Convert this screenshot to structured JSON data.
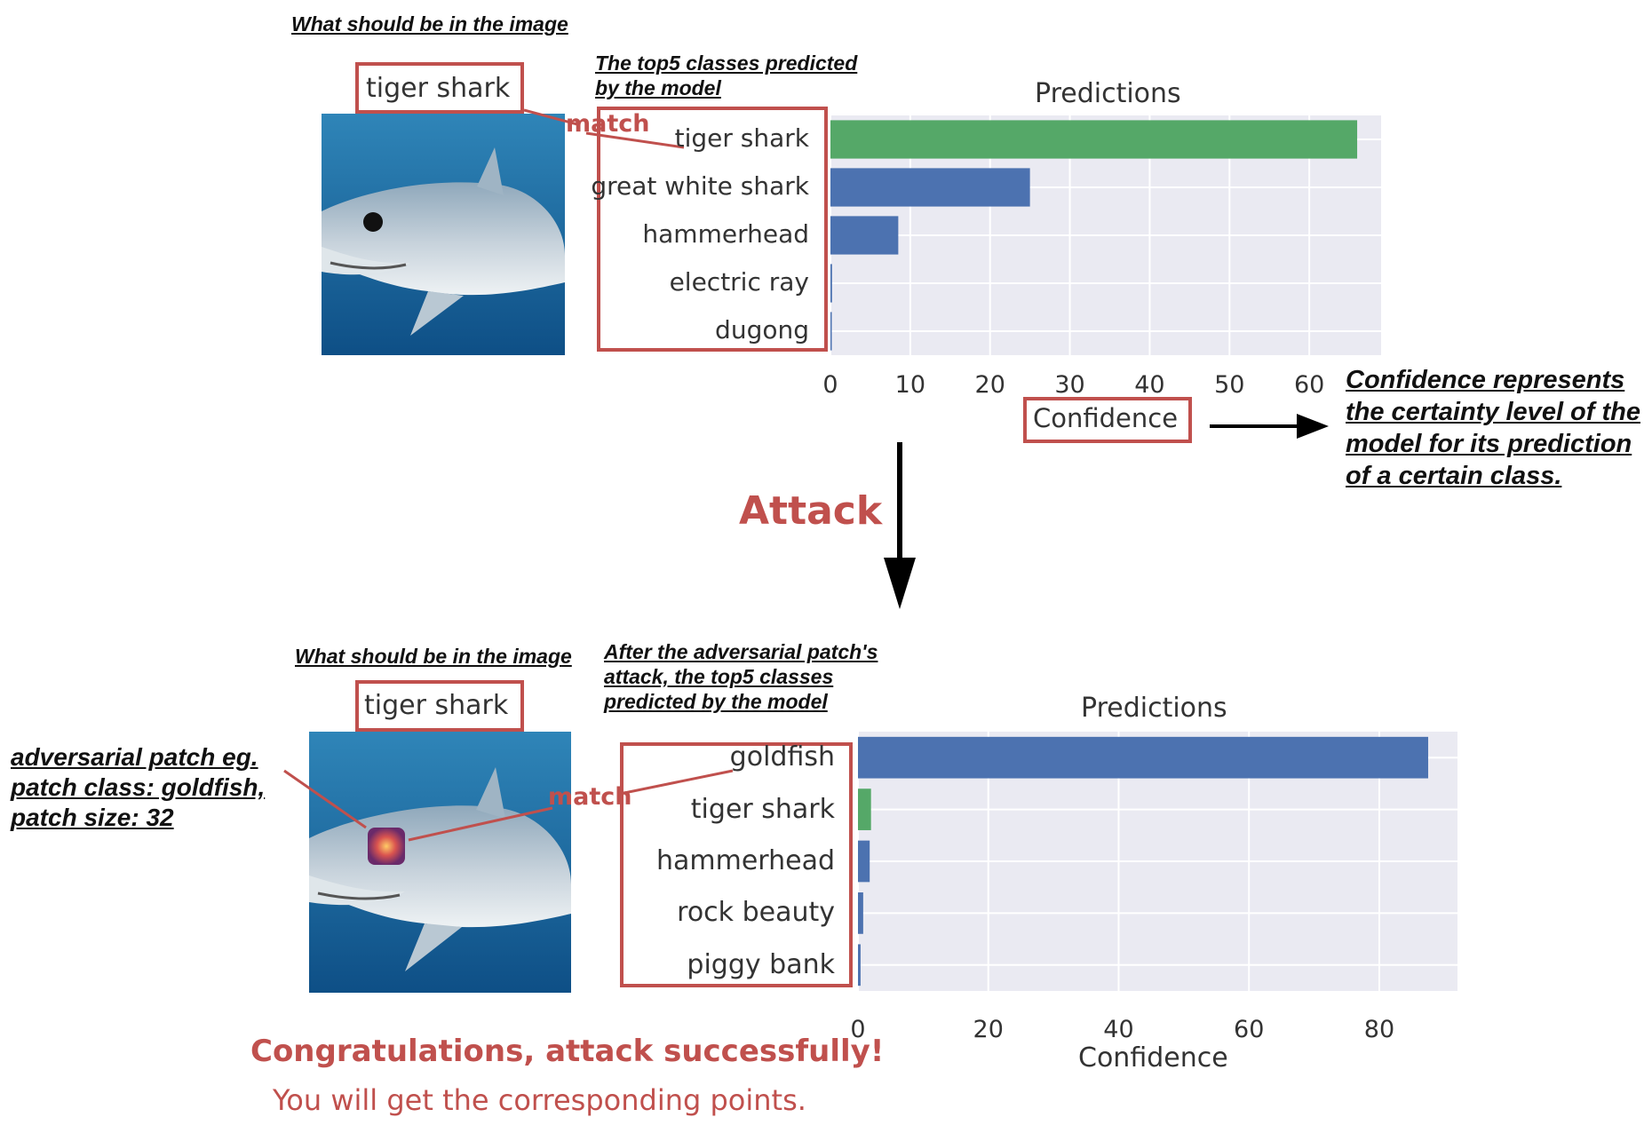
{
  "top": {
    "note_should_be": "What should be in the image",
    "true_label": "tiger shark",
    "match_label": "match",
    "note_top5": "The top5 classes predicted",
    "note_top5_line2": "by the model",
    "confidence_note_lines": [
      "Confidence represents",
      "the certainty level of the",
      "model for its prediction",
      "of a certain class."
    ]
  },
  "attack_label": "Attack",
  "bottom": {
    "note_should_be": "What should be in the image",
    "true_label": "tiger shark",
    "match_label": "match",
    "note_after_lines": [
      "After the adversarial patch's",
      "attack, the top5 classes",
      "predicted by the model"
    ],
    "patch_note_lines": [
      "adversarial patch eg.",
      "patch class: goldfish,",
      "patch size: 32"
    ],
    "congrats": "Congratulations, attack successfully!",
    "points": "You will get the corresponding points."
  },
  "colors": {
    "accent_red": "#c0504d",
    "bar_green": "#55a868",
    "bar_blue": "#4c72b0",
    "plot_bg": "#eaeaf2"
  },
  "chart_data": [
    {
      "type": "bar",
      "orientation": "horizontal",
      "title": "Predictions",
      "xlabel": "Confidence",
      "categories": [
        "tiger shark",
        "great white shark",
        "hammerhead",
        "electric ray",
        "dugong"
      ],
      "values": [
        66,
        25,
        8.5,
        0.2,
        0.1
      ],
      "bar_colors": [
        "green",
        "blue",
        "blue",
        "blue",
        "blue"
      ],
      "xticks": [
        0,
        10,
        20,
        30,
        40,
        50,
        60
      ],
      "xlim": [
        0,
        69
      ],
      "grid": true
    },
    {
      "type": "bar",
      "orientation": "horizontal",
      "title": "Predictions",
      "xlabel": "Confidence",
      "categories": [
        "goldfish",
        "tiger shark",
        "hammerhead",
        "rock beauty",
        "piggy bank"
      ],
      "values": [
        87.5,
        2,
        1.8,
        0.8,
        0.4
      ],
      "bar_colors": [
        "blue",
        "green",
        "blue",
        "blue",
        "blue"
      ],
      "xticks": [
        0,
        20,
        40,
        60,
        80
      ],
      "xlim": [
        0,
        92
      ],
      "grid": true
    }
  ]
}
